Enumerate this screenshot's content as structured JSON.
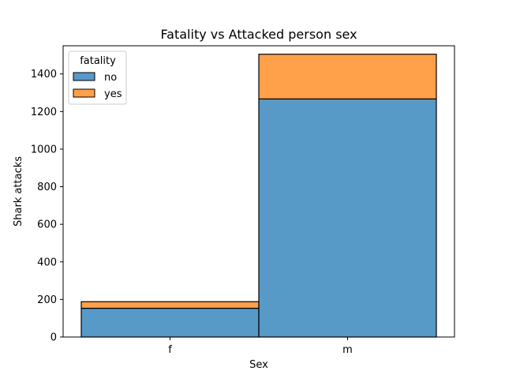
{
  "chart_data": {
    "type": "bar",
    "stacked": true,
    "title": "Fatality vs Attacked person sex",
    "xlabel": "Sex",
    "ylabel": "Shark attacks",
    "categories": [
      "f",
      "m"
    ],
    "ylim": [
      0,
      1550
    ],
    "yticks": [
      0,
      200,
      400,
      600,
      800,
      1000,
      1200,
      1400
    ],
    "legend": {
      "title": "fatality",
      "placement": "top-left"
    },
    "series": [
      {
        "name": "no",
        "values": [
          153,
          1267
        ],
        "color": "#5799c7"
      },
      {
        "name": "yes",
        "values": [
          35,
          238
        ],
        "color": "#ffa04a"
      }
    ],
    "grid": false
  }
}
